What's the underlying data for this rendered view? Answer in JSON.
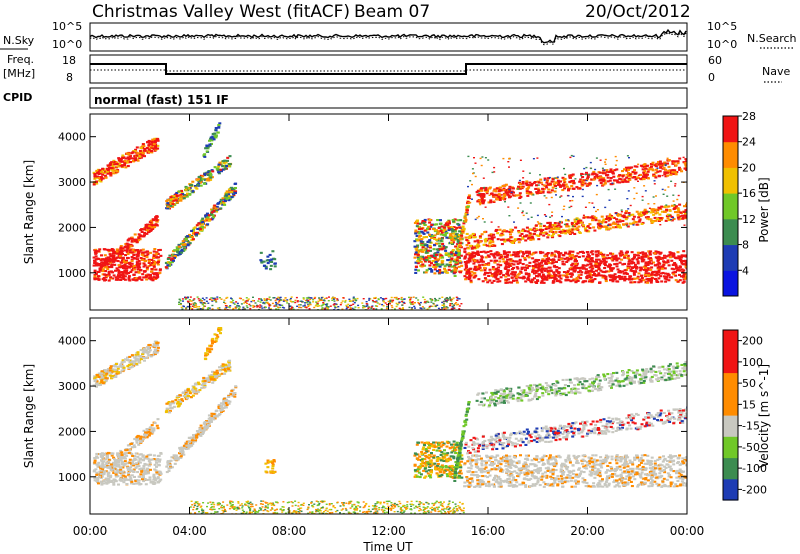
{
  "header": {
    "station": "Christmas Valley West (fitACF)",
    "beam": "Beam 07",
    "date": "20/Oct/2012"
  },
  "noise_panel": {
    "left_label": "N.Sky",
    "left_ticks": [
      "10^5",
      "10^0"
    ],
    "right_label": "N.Search",
    "right_ticks": [
      "10^5",
      "10^0"
    ]
  },
  "freq_panel": {
    "left_label_line1": "Freq.",
    "left_label_line2": "[MHz]",
    "left_ticks": [
      "18",
      "8"
    ],
    "right_label": "Nave",
    "right_ticks": [
      "60",
      "0"
    ]
  },
  "cpid": {
    "label": "CPID",
    "value": "normal (fast) 151 IF"
  },
  "colors": {
    "red": "#f01414",
    "orange": "#ff8c00",
    "yellow": "#f0c000",
    "lightgreen": "#70c828",
    "green": "#3c8c50",
    "blue": "#1e3cb4",
    "gray": "#c8c8c0",
    "deepblue": "#0a14e0"
  },
  "chart_data": [
    {
      "type": "heatmap",
      "ylabel": "Slant Range [km]",
      "yticks": [
        "1000",
        "2000",
        "3000",
        "4000"
      ],
      "ylim": [
        180,
        4500
      ],
      "colorbar": {
        "label": "Power [dB]",
        "ticks": [
          "4",
          "8",
          "12",
          "16",
          "20",
          "24",
          "28"
        ],
        "colors": [
          "#0a14e0",
          "#1e3cb4",
          "#3c8c50",
          "#70c828",
          "#f0c000",
          "#ff8c00",
          "#f01414"
        ]
      }
    },
    {
      "type": "heatmap",
      "ylabel": "Slant Range [km]",
      "yticks": [
        "1000",
        "2000",
        "3000",
        "4000"
      ],
      "ylim": [
        180,
        4500
      ],
      "xlabel": "Time UT",
      "xticks": [
        "00:00",
        "04:00",
        "08:00",
        "12:00",
        "16:00",
        "20:00",
        "00:00"
      ],
      "colorbar": {
        "label": "Velocity [m s^-1]",
        "ticks": [
          "200",
          "100",
          "50",
          "15",
          "-15",
          "-50",
          "-100",
          "-200"
        ],
        "colors": [
          "#1e3cb4",
          "#3c8c50",
          "#70c828",
          "#c8c8c0",
          "#ff8c00",
          "#ff8c00",
          "#f01414",
          "#f01414"
        ]
      }
    }
  ]
}
